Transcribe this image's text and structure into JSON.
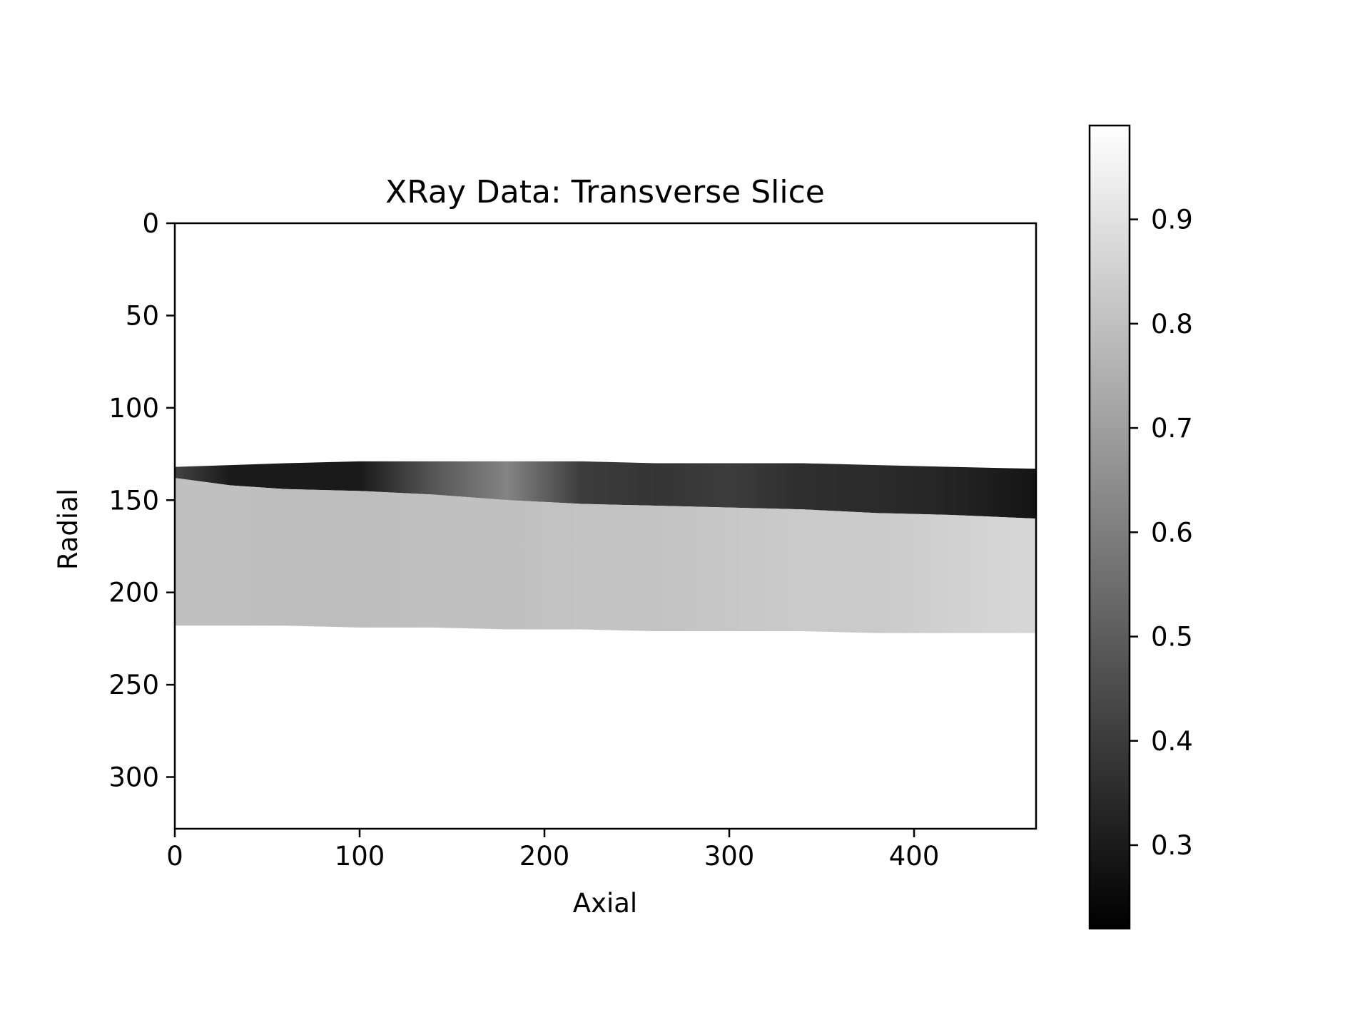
{
  "chart_data": {
    "type": "heatmap",
    "title": "XRay Data: Transverse Slice",
    "xlabel": "Axial",
    "ylabel": "Radial",
    "xlim": [
      0,
      466
    ],
    "ylim": [
      328,
      0
    ],
    "y_axis_inverted": true,
    "xticks": [
      0,
      100,
      200,
      300,
      400
    ],
    "yticks": [
      0,
      50,
      100,
      150,
      200,
      250,
      300
    ],
    "colormap": "gray",
    "colorbar": {
      "range": [
        0.22,
        0.99
      ],
      "ticks": [
        0.3,
        0.4,
        0.5,
        0.6,
        0.7,
        0.8,
        0.9
      ],
      "tick_labels": [
        "0.3",
        "0.4",
        "0.5",
        "0.6",
        "0.7",
        "0.8",
        "0.9"
      ],
      "placement": "right"
    },
    "grid": false,
    "background_color": "#ffffff",
    "band": {
      "x": [
        0,
        30,
        60,
        100,
        140,
        180,
        220,
        260,
        300,
        340,
        380,
        420,
        466
      ],
      "top": [
        132,
        131,
        130,
        129,
        129,
        129,
        129,
        130,
        130,
        130,
        131,
        132,
        133
      ],
      "interface": [
        138,
        142,
        144,
        145,
        147,
        150,
        152,
        153,
        154,
        155,
        157,
        158,
        160
      ],
      "bottom": [
        218,
        218,
        218,
        219,
        219,
        220,
        220,
        221,
        221,
        221,
        222,
        222,
        222
      ],
      "upper_layer_values": [
        0.42,
        0.3,
        0.3,
        0.3,
        0.48,
        0.62,
        0.4,
        0.38,
        0.4,
        0.36,
        0.35,
        0.33,
        0.28
      ],
      "lower_layer_values": [
        0.8,
        0.8,
        0.79,
        0.79,
        0.8,
        0.8,
        0.81,
        0.81,
        0.82,
        0.83,
        0.83,
        0.85,
        0.87
      ]
    }
  }
}
